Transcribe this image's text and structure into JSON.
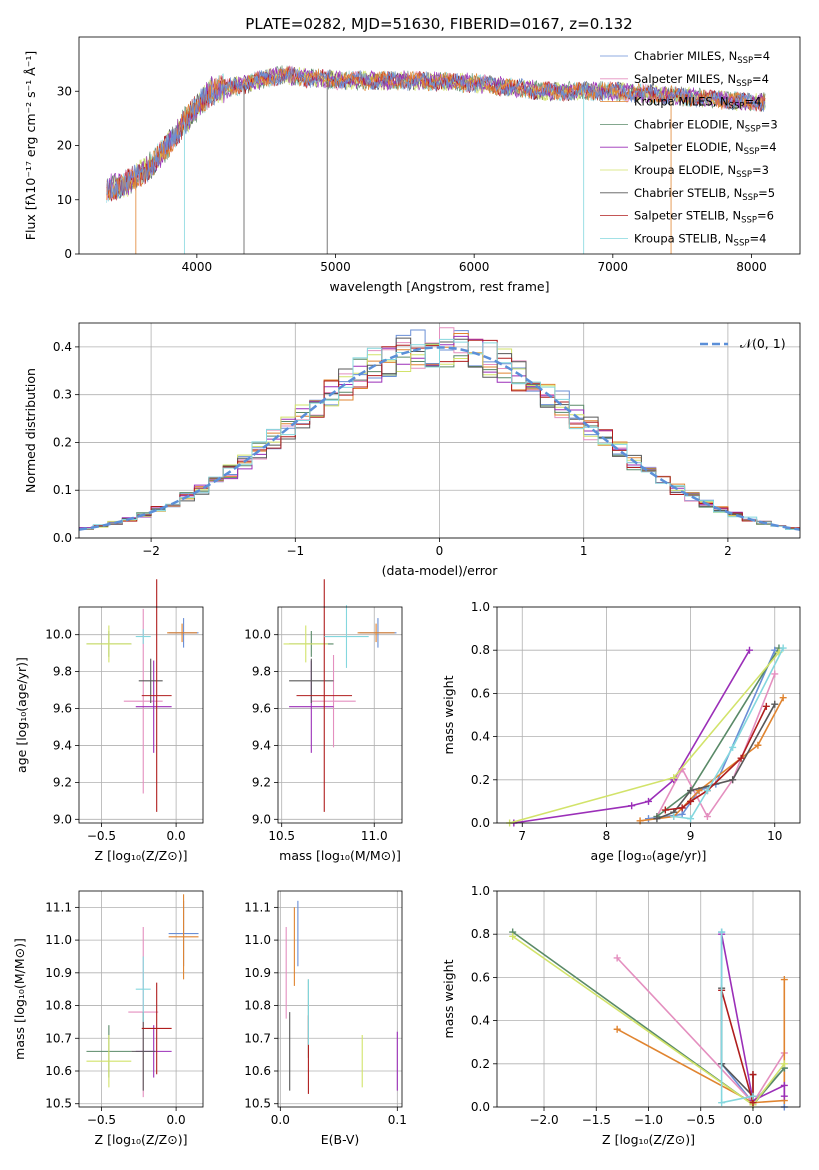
{
  "figure_title": "PLATE=0282, MJD=51630, FIBERID=0167, z=0.132",
  "colors": [
    "#6a8fd6",
    "#e48fbf",
    "#e08430",
    "#5a8a68",
    "#9b2fb8",
    "#d2e36a",
    "#585858",
    "#b01e1e",
    "#84d7de"
  ],
  "chart_data": [
    {
      "type": "line",
      "ylabel": "Flux [fλ10⁻¹⁷ erg cm⁻² s⁻¹ Å⁻¹]",
      "xlabel": "wavelength [Angstrom, rest frame]",
      "xlim": [
        3150,
        8350
      ],
      "ylim": [
        0,
        40
      ],
      "xticks": [
        "4000",
        "5000",
        "6000",
        "7000",
        "8000"
      ],
      "yticks": [
        "0",
        "10",
        "20",
        "30"
      ],
      "legend_position": "right",
      "series": [
        {
          "name": "Chabrier MILES, N_SSP=4",
          "label_base": "Chabrier MILES, N",
          "label_sub": "SSP",
          "label_tail": "=4"
        },
        {
          "name": "Salpeter MILES, N_SSP=4",
          "label_base": "Salpeter MILES, N",
          "label_sub": "SSP",
          "label_tail": "=4"
        },
        {
          "name": "Kroupa MILES, N_SSP=4",
          "label_base": "Kroupa MILES, N",
          "label_sub": "SSP",
          "label_tail": "=4"
        },
        {
          "name": "Chabrier ELODIE, N_SSP=3",
          "label_base": "Chabrier ELODIE, N",
          "label_sub": "SSP",
          "label_tail": "=3"
        },
        {
          "name": "Salpeter ELODIE, N_SSP=4",
          "label_base": "Salpeter ELODIE, N",
          "label_sub": "SSP",
          "label_tail": "=4"
        },
        {
          "name": "Kroupa ELODIE, N_SSP=3",
          "label_base": "Kroupa ELODIE, N",
          "label_sub": "SSP",
          "label_tail": "=3"
        },
        {
          "name": "Chabrier STELIB, N_SSP=5",
          "label_base": "Chabrier STELIB, N",
          "label_sub": "SSP",
          "label_tail": "=5"
        },
        {
          "name": "Salpeter STELIB, N_SSP=6",
          "label_base": "Salpeter STELIB, N",
          "label_sub": "SSP",
          "label_tail": "=6"
        },
        {
          "name": "Kroupa STELIB, N_SSP=4",
          "label_base": "Kroupa STELIB, N",
          "label_sub": "SSP",
          "label_tail": "=4"
        }
      ],
      "spectrum_envelope": [
        [
          3350,
          12
        ],
        [
          3500,
          13
        ],
        [
          3700,
          17
        ],
        [
          3900,
          24
        ],
        [
          4100,
          30
        ],
        [
          4300,
          31
        ],
        [
          4600,
          33
        ],
        [
          5000,
          32
        ],
        [
          5500,
          32
        ],
        [
          6000,
          31.5
        ],
        [
          6500,
          30
        ],
        [
          7000,
          30
        ],
        [
          7500,
          29
        ],
        [
          8000,
          28
        ],
        [
          8100,
          28
        ]
      ]
    },
    {
      "type": "step",
      "xlabel": "(data-model)/error",
      "ylabel": "Normed distribution",
      "xlim": [
        -2.5,
        2.5
      ],
      "ylim": [
        0,
        0.45
      ],
      "xticks": [
        "−2",
        "−1",
        "0",
        "1",
        "2"
      ],
      "yticks": [
        "0.0",
        "0.1",
        "0.2",
        "0.3",
        "0.4"
      ],
      "reference_label": "𝒩(0, 1)",
      "reference": "normal pdf mean 0 sigma 1",
      "legend_position": "top-right"
    },
    {
      "type": "scatter",
      "xlabel": "Z [log₁₀(Z/Z⊙)]",
      "ylabel": "age  [log₁₀(age/yr)]",
      "xlim": [
        -0.65,
        0.18
      ],
      "ylim": [
        8.98,
        10.15
      ],
      "xticks": [
        "−0.5",
        "0.0"
      ],
      "yticks": [
        "9.0",
        "9.2",
        "9.4",
        "9.6",
        "9.8",
        "10.0"
      ],
      "points": [
        {
          "x": 0.05,
          "y": 10.01,
          "xerr": 0.1,
          "yerr": 0.08
        },
        {
          "x": -0.22,
          "y": 9.64,
          "xerr": 0.13,
          "yerr": 0.5
        },
        {
          "x": 0.04,
          "y": 10.01,
          "xerr": 0.1,
          "yerr": 0.05
        },
        {
          "x": -0.45,
          "y": 9.95,
          "xerr": 0.15,
          "yerr": 0.07
        },
        {
          "x": -0.15,
          "y": 9.61,
          "xerr": 0.12,
          "yerr": 0.25
        },
        {
          "x": -0.45,
          "y": 9.95,
          "xerr": 0.15,
          "yerr": 0.1
        },
        {
          "x": -0.17,
          "y": 9.75,
          "xerr": 0.08,
          "yerr": 0.12
        },
        {
          "x": -0.13,
          "y": 9.67,
          "xerr": 0.1,
          "yerr": 0.63
        },
        {
          "x": -0.22,
          "y": 9.99,
          "xerr": 0.05,
          "yerr": 0.04
        }
      ]
    },
    {
      "type": "scatter",
      "xlabel": "mass [log₁₀(M/M⊙)]",
      "ylabel": "",
      "xlim": [
        10.48,
        11.15
      ],
      "ylim": [
        8.98,
        10.15
      ],
      "xticks": [
        "10.5",
        "11.0"
      ],
      "yticks": [
        "9.0",
        "9.2",
        "9.4",
        "9.6",
        "9.8",
        "10.0"
      ],
      "points": [
        {
          "x": 11.02,
          "y": 10.01,
          "xerr": 0.1,
          "yerr": 0.08
        },
        {
          "x": 10.78,
          "y": 9.64,
          "xerr": 0.12,
          "yerr": 0.25
        },
        {
          "x": 11.01,
          "y": 10.01,
          "xerr": 0.1,
          "yerr": 0.05
        },
        {
          "x": 10.66,
          "y": 9.95,
          "xerr": 0.12,
          "yerr": 0.07
        },
        {
          "x": 10.66,
          "y": 9.61,
          "xerr": 0.12,
          "yerr": 0.25
        },
        {
          "x": 10.63,
          "y": 9.95,
          "xerr": 0.12,
          "yerr": 0.1
        },
        {
          "x": 10.66,
          "y": 9.75,
          "xerr": 0.12,
          "yerr": 0.12
        },
        {
          "x": 10.73,
          "y": 9.67,
          "xerr": 0.15,
          "yerr": 0.63
        },
        {
          "x": 10.85,
          "y": 9.99,
          "xerr": 0.12,
          "yerr": 0.17
        }
      ]
    },
    {
      "type": "line",
      "xlabel": "age  [log₁₀(age/yr)]",
      "ylabel": "mass weight",
      "xlim": [
        6.7,
        10.3
      ],
      "ylim": [
        0,
        1.0
      ],
      "xticks": [
        "7",
        "8",
        "9",
        "10"
      ],
      "yticks": [
        "0.0",
        "0.2",
        "0.4",
        "0.6",
        "0.8",
        "1.0"
      ],
      "series": [
        {
          "x": [
            8.5,
            8.9,
            9.1,
            9.3,
            10.0
          ],
          "y": [
            0.02,
            0.04,
            0.15,
            0.18,
            0.8
          ]
        },
        {
          "x": [
            8.6,
            8.9,
            9.2,
            9.5,
            10.0
          ],
          "y": [
            0.03,
            0.25,
            0.03,
            0.2,
            0.69
          ]
        },
        {
          "x": [
            8.4,
            8.8,
            9.1,
            9.8,
            10.1
          ],
          "y": [
            0.01,
            0.03,
            0.15,
            0.36,
            0.58
          ]
        },
        {
          "x": [
            8.6,
            9.0,
            10.05
          ],
          "y": [
            0.03,
            0.15,
            0.81
          ]
        },
        {
          "x": [
            6.9,
            8.3,
            8.5,
            8.8,
            9.7
          ],
          "y": [
            0.0,
            0.08,
            0.1,
            0.2,
            0.8
          ]
        },
        {
          "x": [
            6.85,
            8.8,
            10.05
          ],
          "y": [
            0.0,
            0.21,
            0.79
          ]
        },
        {
          "x": [
            8.6,
            8.8,
            9.0,
            9.5,
            10.0
          ],
          "y": [
            0.02,
            0.05,
            0.15,
            0.2,
            0.55
          ]
        },
        {
          "x": [
            8.7,
            8.9,
            9.0,
            9.2,
            9.6,
            9.9
          ],
          "y": [
            0.06,
            0.07,
            0.1,
            0.15,
            0.3,
            0.54
          ]
        },
        {
          "x": [
            8.8,
            9.0,
            9.2,
            9.5,
            10.1
          ],
          "y": [
            0.03,
            0.02,
            0.15,
            0.35,
            0.81
          ]
        }
      ]
    },
    {
      "type": "scatter",
      "xlabel": "Z [log₁₀(Z/Z⊙)]",
      "ylabel": "mass [log₁₀(M/M⊙)]",
      "xlim": [
        -0.65,
        0.18
      ],
      "ylim": [
        10.49,
        11.15
      ],
      "xticks": [
        "−0.5",
        "0.0"
      ],
      "yticks": [
        "10.5",
        "10.6",
        "10.7",
        "10.8",
        "10.9",
        "11.0",
        "11.1"
      ],
      "points": [
        {
          "x": 0.05,
          "y": 11.02,
          "xerr": 0.1,
          "yerr": 0.1
        },
        {
          "x": -0.22,
          "y": 10.78,
          "xerr": 0.1,
          "yerr": 0.26
        },
        {
          "x": 0.05,
          "y": 11.01,
          "xerr": 0.1,
          "yerr": 0.13
        },
        {
          "x": -0.45,
          "y": 10.66,
          "xerr": 0.15,
          "yerr": 0.08
        },
        {
          "x": -0.15,
          "y": 10.66,
          "xerr": 0.12,
          "yerr": 0.08
        },
        {
          "x": -0.45,
          "y": 10.63,
          "xerr": 0.15,
          "yerr": 0.08
        },
        {
          "x": -0.22,
          "y": 10.66,
          "xerr": 0.08,
          "yerr": 0.12
        },
        {
          "x": -0.13,
          "y": 10.73,
          "xerr": 0.1,
          "yerr": 0.14
        },
        {
          "x": -0.22,
          "y": 10.85,
          "xerr": 0.05,
          "yerr": 0.1
        }
      ]
    },
    {
      "type": "scatter",
      "xlabel": "E(B-V)",
      "ylabel": "",
      "xlim": [
        -0.002,
        0.104
      ],
      "ylim": [
        10.49,
        11.15
      ],
      "xticks": [
        "0.0",
        "0.1"
      ],
      "yticks": [
        "10.5",
        "10.6",
        "10.7",
        "10.8",
        "10.9",
        "11.0",
        "11.1"
      ],
      "points": [
        {
          "x": 0.015,
          "y": 11.02,
          "yerr": 0.1
        },
        {
          "x": 0.005,
          "y": 10.9,
          "yerr": 0.14
        },
        {
          "x": 0.012,
          "y": 10.98,
          "yerr": 0.12
        },
        {
          "x": 0.024,
          "y": 10.76,
          "yerr": 0.12
        },
        {
          "x": 0.1,
          "y": 10.63,
          "yerr": 0.09
        },
        {
          "x": 0.07,
          "y": 10.63,
          "yerr": 0.08
        },
        {
          "x": 0.008,
          "y": 10.66,
          "yerr": 0.12
        },
        {
          "x": 0.024,
          "y": 10.65,
          "yerr": 0.12
        },
        {
          "x": 0.024,
          "y": 10.78,
          "yerr": 0.1
        }
      ]
    },
    {
      "type": "line",
      "xlabel": "Z [log₁₀(Z/Z⊙)]",
      "ylabel": "mass weight",
      "xlim": [
        -2.45,
        0.45
      ],
      "ylim": [
        0,
        1.0
      ],
      "xticks": [
        "−2.0",
        "−1.5",
        "−1.0",
        "−0.5",
        "0.0"
      ],
      "yticks": [
        "0.0",
        "0.2",
        "0.4",
        "0.6",
        "0.8",
        "1.0"
      ],
      "series": [
        {
          "x": [
            -0.3,
            -0.3,
            0.0,
            0.3,
            0.3
          ],
          "y": [
            0.81,
            0.2,
            0.02,
            0.18,
            0.0
          ]
        },
        {
          "x": [
            -1.3,
            0.0,
            0.3
          ],
          "y": [
            0.69,
            0.02,
            0.25
          ]
        },
        {
          "x": [
            -1.3,
            0.0,
            0.3,
            0.3
          ],
          "y": [
            0.36,
            0.02,
            0.03,
            0.59
          ]
        },
        {
          "x": [
            -2.3,
            0.0,
            0.3
          ],
          "y": [
            0.81,
            0.01,
            0.18
          ]
        },
        {
          "x": [
            -0.3,
            0.0,
            0.3,
            0.3
          ],
          "y": [
            0.8,
            0.03,
            0.1,
            0.05
          ]
        },
        {
          "x": [
            -2.3,
            0.0,
            0.3
          ],
          "y": [
            0.79,
            0.01,
            0.2
          ]
        },
        {
          "x": [
            -0.3,
            -0.3,
            0.0,
            0.0
          ],
          "y": [
            0.55,
            0.2,
            0.05,
            0.15
          ]
        },
        {
          "x": [
            -0.3,
            0.0,
            0.0
          ],
          "y": [
            0.54,
            0.02,
            0.15
          ]
        },
        {
          "x": [
            -0.3,
            -0.3,
            0.0
          ],
          "y": [
            0.81,
            0.02,
            0.05
          ]
        }
      ]
    }
  ]
}
